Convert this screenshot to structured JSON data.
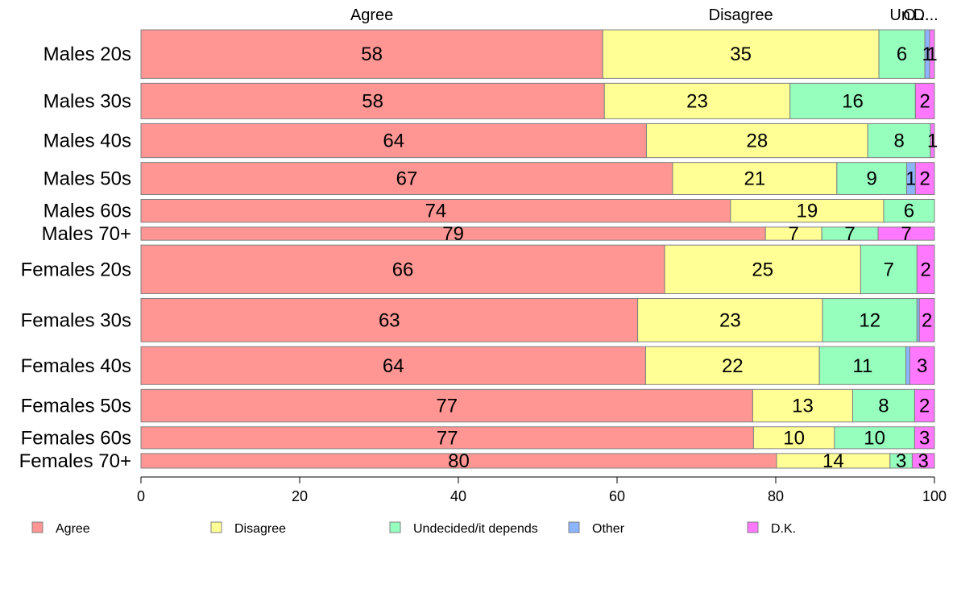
{
  "chart_data": {
    "type": "bar",
    "orientation": "horizontal",
    "stacked": true,
    "xlim": [
      0,
      100
    ],
    "x_ticks": [
      0,
      20,
      40,
      60,
      80,
      100
    ],
    "colors": [
      "#ff9693",
      "#ffff96",
      "#96ffbe",
      "#8cb4ff",
      "#ff78ff"
    ],
    "series_names": [
      "Agree",
      "Disagree",
      "Undecided/it depends",
      "Other",
      "D.K."
    ],
    "top_labels": [
      "Agree",
      "Disagree",
      "Un...",
      "O...",
      "D..."
    ],
    "legend_position": "bottom",
    "rows": [
      {
        "label": "Males 20s",
        "weight": 1.0,
        "values": [
          58.2,
          34.8,
          5.8,
          0.6,
          0.6
        ],
        "labels": [
          "58",
          "35",
          "6",
          "1",
          "1"
        ]
      },
      {
        "label": "Males 30s",
        "weight": 0.73,
        "values": [
          58.4,
          23.4,
          15.8,
          0.0,
          2.4
        ],
        "labels": [
          "58",
          "23",
          "16",
          "",
          "2"
        ]
      },
      {
        "label": "Males 40s",
        "weight": 0.7,
        "values": [
          63.7,
          27.9,
          7.9,
          0.0,
          0.5
        ],
        "labels": [
          "64",
          "28",
          "8",
          "",
          "1"
        ]
      },
      {
        "label": "Males 50s",
        "weight": 0.66,
        "values": [
          67.0,
          20.7,
          8.8,
          1.1,
          2.4
        ],
        "labels": [
          "67",
          "21",
          "9",
          "1",
          "2"
        ]
      },
      {
        "label": "Males 60s",
        "weight": 0.47,
        "values": [
          74.3,
          19.3,
          6.4,
          0.0,
          0.0
        ],
        "labels": [
          "74",
          "19",
          "6",
          "",
          ""
        ]
      },
      {
        "label": "Males 70+",
        "weight": 0.27,
        "values": [
          78.7,
          7.1,
          7.1,
          0.0,
          7.1
        ],
        "labels": [
          "79",
          "7",
          "7",
          "",
          "7"
        ]
      },
      {
        "label": "Females 20s",
        "weight": 1.0,
        "values": [
          66.0,
          24.7,
          7.1,
          0.0,
          2.2
        ],
        "labels": [
          "66",
          "25",
          "7",
          "",
          "2"
        ]
      },
      {
        "label": "Females 30s",
        "weight": 0.89,
        "values": [
          62.6,
          23.3,
          11.9,
          0.3,
          1.9
        ],
        "labels": [
          "63",
          "23",
          "12",
          "",
          "2"
        ]
      },
      {
        "label": "Females 40s",
        "weight": 0.78,
        "values": [
          63.6,
          21.9,
          10.9,
          0.5,
          3.1
        ],
        "labels": [
          "64",
          "22",
          "11",
          "",
          "3"
        ]
      },
      {
        "label": "Females 50s",
        "weight": 0.67,
        "values": [
          77.1,
          12.6,
          7.8,
          0.0,
          2.5
        ],
        "labels": [
          "77",
          "13",
          "8",
          "",
          "2"
        ]
      },
      {
        "label": "Females 60s",
        "weight": 0.45,
        "values": [
          77.2,
          10.2,
          10.1,
          0.0,
          2.5
        ],
        "labels": [
          "77",
          "10",
          "10",
          "",
          "3"
        ]
      },
      {
        "label": "Females 70+",
        "weight": 0.3,
        "values": [
          80.1,
          14.3,
          2.8,
          0.0,
          2.8
        ],
        "labels": [
          "80",
          "14",
          "3",
          "",
          "3"
        ]
      }
    ]
  }
}
